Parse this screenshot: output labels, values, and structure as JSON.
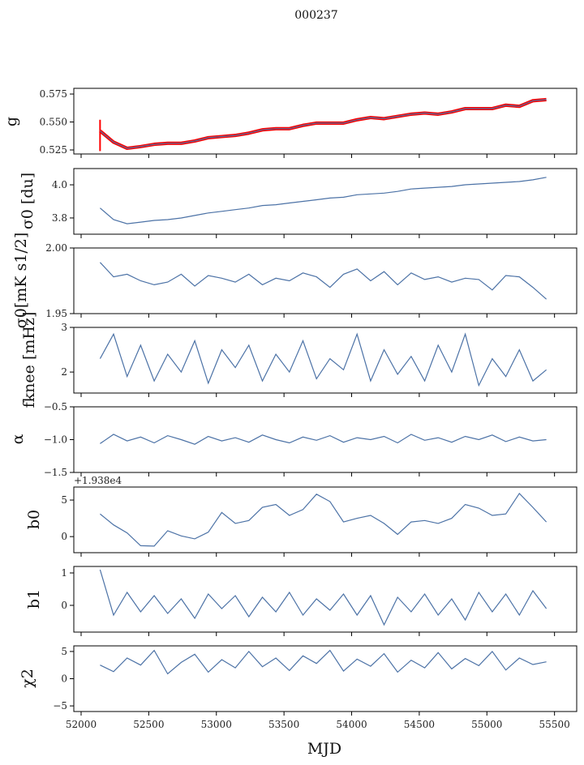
{
  "chart_data": {
    "type": "line",
    "title": "000237",
    "xlabel": "MJD",
    "xlim": [
      51946,
      55664
    ],
    "xticks": [
      52000,
      52500,
      53000,
      53500,
      54000,
      54500,
      55000,
      55500
    ],
    "xtick_labels": [
      "52000",
      "52500",
      "53000",
      "53500",
      "54000",
      "54500",
      "55000",
      "55500"
    ],
    "x": [
      52140,
      52240,
      52340,
      52440,
      52540,
      52640,
      52740,
      52840,
      52940,
      53040,
      53140,
      53240,
      53340,
      53440,
      53540,
      53640,
      53740,
      53840,
      53940,
      54040,
      54140,
      54240,
      54340,
      54440,
      54540,
      54640,
      54740,
      54840,
      54940,
      55040,
      55140,
      55240,
      55340,
      55440
    ],
    "line_color": "#4c72a6",
    "band_color": "#ff0000",
    "panels": [
      {
        "ylabel": "g",
        "ylim": [
          0.5214,
          0.5801
        ],
        "yticks": [
          0.525,
          0.55,
          0.575
        ],
        "ytick_labels": [
          "0.525",
          "0.550",
          "0.575"
        ],
        "offset": "",
        "band_halfwidth": 0.0015,
        "values": [
          0.542,
          0.532,
          0.5265,
          0.528,
          0.53,
          0.531,
          0.531,
          0.533,
          0.536,
          0.537,
          0.538,
          0.54,
          0.543,
          0.544,
          0.544,
          0.547,
          0.549,
          0.549,
          0.549,
          0.552,
          0.554,
          0.553,
          0.555,
          0.557,
          0.558,
          0.557,
          0.559,
          0.562,
          0.562,
          0.562,
          0.565,
          0.564,
          0.569,
          0.57
        ]
      },
      {
        "ylabel": "σ0 [du]",
        "ylim": [
          3.702,
          4.098
        ],
        "yticks": [
          3.8,
          4.0
        ],
        "ytick_labels": [
          "3.8",
          "4.0"
        ],
        "offset": "",
        "values": [
          3.86,
          3.79,
          3.765,
          3.775,
          3.785,
          3.79,
          3.8,
          3.815,
          3.83,
          3.84,
          3.85,
          3.86,
          3.875,
          3.88,
          3.89,
          3.9,
          3.91,
          3.92,
          3.925,
          3.94,
          3.945,
          3.95,
          3.96,
          3.975,
          3.98,
          3.985,
          3.99,
          4.0,
          4.005,
          4.01,
          4.015,
          4.02,
          4.03,
          4.045
        ]
      },
      {
        "ylabel": "σ0[mK s1/2]",
        "ylim": [
          1.95,
          2.0
        ],
        "yticks": [
          1.95,
          2.0
        ],
        "ytick_labels": [
          "1.95",
          "2.00"
        ],
        "offset": "",
        "values": [
          1.989,
          1.978,
          1.98,
          1.975,
          1.972,
          1.974,
          1.98,
          1.971,
          1.979,
          1.977,
          1.974,
          1.98,
          1.972,
          1.977,
          1.975,
          1.981,
          1.978,
          1.97,
          1.98,
          1.984,
          1.975,
          1.982,
          1.972,
          1.981,
          1.976,
          1.978,
          1.974,
          1.977,
          1.976,
          1.968,
          1.979,
          1.978,
          1.97,
          1.961
        ]
      },
      {
        "ylabel": "fknee [mHz]",
        "ylim": [
          1.53,
          3.0
        ],
        "yticks": [
          2,
          3
        ],
        "ytick_labels": [
          "2",
          "3"
        ],
        "offset": "",
        "values": [
          2.3,
          2.85,
          1.9,
          2.6,
          1.8,
          2.4,
          2.0,
          2.7,
          1.75,
          2.5,
          2.1,
          2.6,
          1.8,
          2.4,
          2.0,
          2.7,
          1.85,
          2.3,
          2.05,
          2.85,
          1.8,
          2.5,
          1.95,
          2.35,
          1.8,
          2.6,
          2.0,
          2.85,
          1.7,
          2.3,
          1.9,
          2.5,
          1.8,
          2.05
        ]
      },
      {
        "ylabel": "α",
        "ylim": [
          -1.5,
          -0.5
        ],
        "yticks": [
          -1.5,
          -1.0,
          -0.5
        ],
        "ytick_labels": [
          "−1.5",
          "−1.0",
          "−0.5"
        ],
        "offset": "",
        "values": [
          -1.06,
          -0.92,
          -1.02,
          -0.96,
          -1.05,
          -0.94,
          -1.0,
          -1.07,
          -0.95,
          -1.02,
          -0.97,
          -1.04,
          -0.93,
          -1.0,
          -1.05,
          -0.96,
          -1.01,
          -0.94,
          -1.04,
          -0.97,
          -1.0,
          -0.95,
          -1.05,
          -0.92,
          -1.01,
          -0.97,
          -1.04,
          -0.95,
          -1.0,
          -0.93,
          -1.03,
          -0.96,
          -1.02,
          -1.0
        ]
      },
      {
        "ylabel": "b0",
        "ylim": [
          -2.2,
          6.78
        ],
        "yticks": [
          0,
          5
        ],
        "ytick_labels": [
          "0",
          "5"
        ],
        "offset": "+1.938e4",
        "values": [
          3.1,
          1.6,
          0.5,
          -1.25,
          -1.3,
          0.8,
          0.1,
          -0.3,
          0.6,
          3.3,
          1.8,
          2.2,
          4.0,
          4.4,
          2.9,
          3.7,
          5.8,
          4.8,
          2.0,
          2.5,
          2.9,
          1.8,
          0.3,
          2.0,
          2.2,
          1.8,
          2.5,
          4.4,
          3.9,
          2.9,
          3.1,
          5.9,
          4.0,
          2.0
        ]
      },
      {
        "ylabel": "b1",
        "ylim": [
          -0.825,
          1.2
        ],
        "yticks": [
          0,
          1
        ],
        "ytick_labels": [
          "0",
          "1"
        ],
        "offset": "",
        "values": [
          1.1,
          -0.3,
          0.4,
          -0.2,
          0.3,
          -0.25,
          0.2,
          -0.4,
          0.35,
          -0.1,
          0.3,
          -0.35,
          0.25,
          -0.2,
          0.4,
          -0.3,
          0.2,
          -0.15,
          0.35,
          -0.3,
          0.3,
          -0.6,
          0.25,
          -0.2,
          0.35,
          -0.3,
          0.2,
          -0.45,
          0.4,
          -0.2,
          0.35,
          -0.3,
          0.45,
          -0.1
        ]
      },
      {
        "ylabel": "χ2",
        "ylim": [
          -6.03,
          6.03
        ],
        "yticks": [
          -5,
          0,
          5
        ],
        "ytick_labels": [
          "−5",
          "0",
          "5"
        ],
        "offset": "",
        "values": [
          2.5,
          1.3,
          3.8,
          2.5,
          5.2,
          0.9,
          3.0,
          4.5,
          1.2,
          3.5,
          2.0,
          5.0,
          2.2,
          3.8,
          1.5,
          4.2,
          2.8,
          5.2,
          1.4,
          3.6,
          2.3,
          4.6,
          1.2,
          3.4,
          2.0,
          4.8,
          1.8,
          3.7,
          2.4,
          5.0,
          1.6,
          3.8,
          2.6,
          3.1
        ]
      }
    ]
  }
}
